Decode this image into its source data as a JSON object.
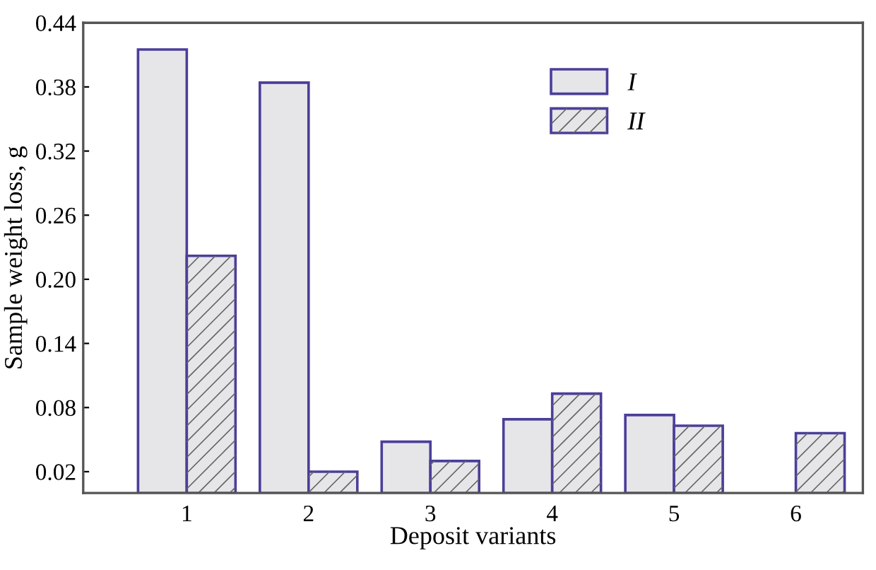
{
  "chart_data": {
    "type": "bar",
    "xlabel": "Deposit variants",
    "ylabel": "Sample weight loss, g",
    "categories": [
      "1",
      "2",
      "3",
      "4",
      "5",
      "6"
    ],
    "series": [
      {
        "name": "I",
        "color": "#e6e6e8",
        "values": [
          0.415,
          0.384,
          0.048,
          0.069,
          0.073,
          null
        ]
      },
      {
        "name": "II",
        "color": "#e6e6e8",
        "values": [
          0.222,
          0.02,
          0.03,
          0.093,
          0.063,
          0.056
        ]
      }
    ],
    "ylim": [
      0,
      0.44
    ],
    "yticks": [
      {
        "value": 0.02,
        "label": "0.02"
      },
      {
        "value": 0.08,
        "label": "0.08"
      },
      {
        "value": 0.14,
        "label": "0.14"
      },
      {
        "value": 0.2,
        "label": "0.20"
      },
      {
        "value": 0.26,
        "label": "0.26"
      },
      {
        "value": 0.32,
        "label": "0.32"
      },
      {
        "value": 0.38,
        "label": "0.38"
      },
      {
        "value": 0.44,
        "label": "0.44"
      }
    ],
    "grid": false,
    "legend": "top"
  }
}
